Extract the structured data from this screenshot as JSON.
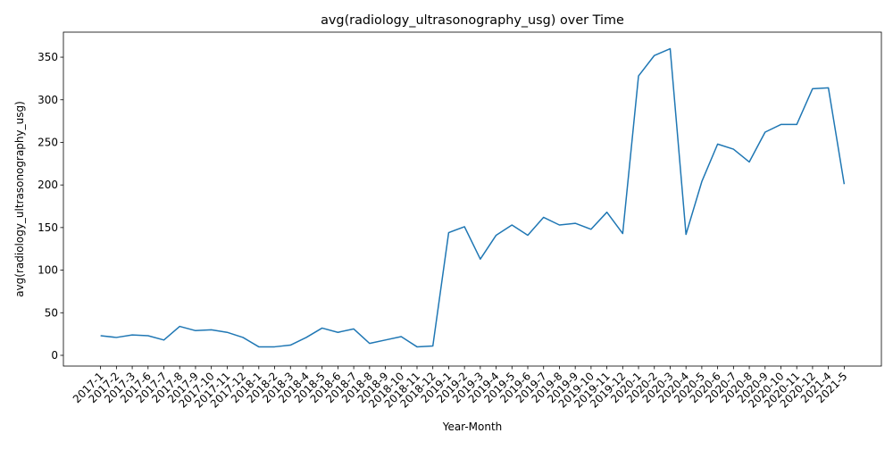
{
  "chart_data": {
    "type": "line",
    "title": "avg(radiology_ultrasonography_usg) over Time",
    "x_label": "Year-Month",
    "y_label": "avg(radiology_ultrasonography_usg)",
    "categories": [
      "2017-1",
      "2017-2",
      "2017-3",
      "2017-6",
      "2017-7",
      "2017-8",
      "2017-9",
      "2017-10",
      "2017-11",
      "2017-12",
      "2018-1",
      "2018-2",
      "2018-3",
      "2018-4",
      "2018-5",
      "2018-6",
      "2018-7",
      "2018-8",
      "2018-9",
      "2018-10",
      "2018-11",
      "2018-12",
      "2019-1",
      "2019-2",
      "2019-3",
      "2019-4",
      "2019-5",
      "2019-6",
      "2019-7",
      "2019-8",
      "2019-9",
      "2019-10",
      "2019-11",
      "2019-12",
      "2020-1",
      "2020-2",
      "2020-3",
      "2020-4",
      "2020-5",
      "2020-6",
      "2020-7",
      "2020-8",
      "2020-9",
      "2020-10",
      "2020-11",
      "2020-12",
      "2021-4",
      "2021-5"
    ],
    "series": [
      {
        "name": "avg(radiology_ultrasonography_usg)",
        "color": "#1f77b4",
        "values": [
          23,
          21,
          24,
          23,
          18,
          34,
          29,
          30,
          27,
          21,
          10,
          10,
          12,
          21,
          32,
          27,
          31,
          14,
          18,
          22,
          10,
          11,
          144,
          151,
          113,
          141,
          153,
          141,
          162,
          153,
          155,
          148,
          168,
          143,
          328,
          352,
          360,
          142,
          204,
          248,
          242,
          227,
          262,
          271,
          271,
          313,
          314,
          201
        ]
      }
    ],
    "ylim": [
      -12.6,
      379.4
    ],
    "yticks": [
      0,
      50,
      100,
      150,
      200,
      250,
      300,
      350
    ],
    "grid": false
  }
}
